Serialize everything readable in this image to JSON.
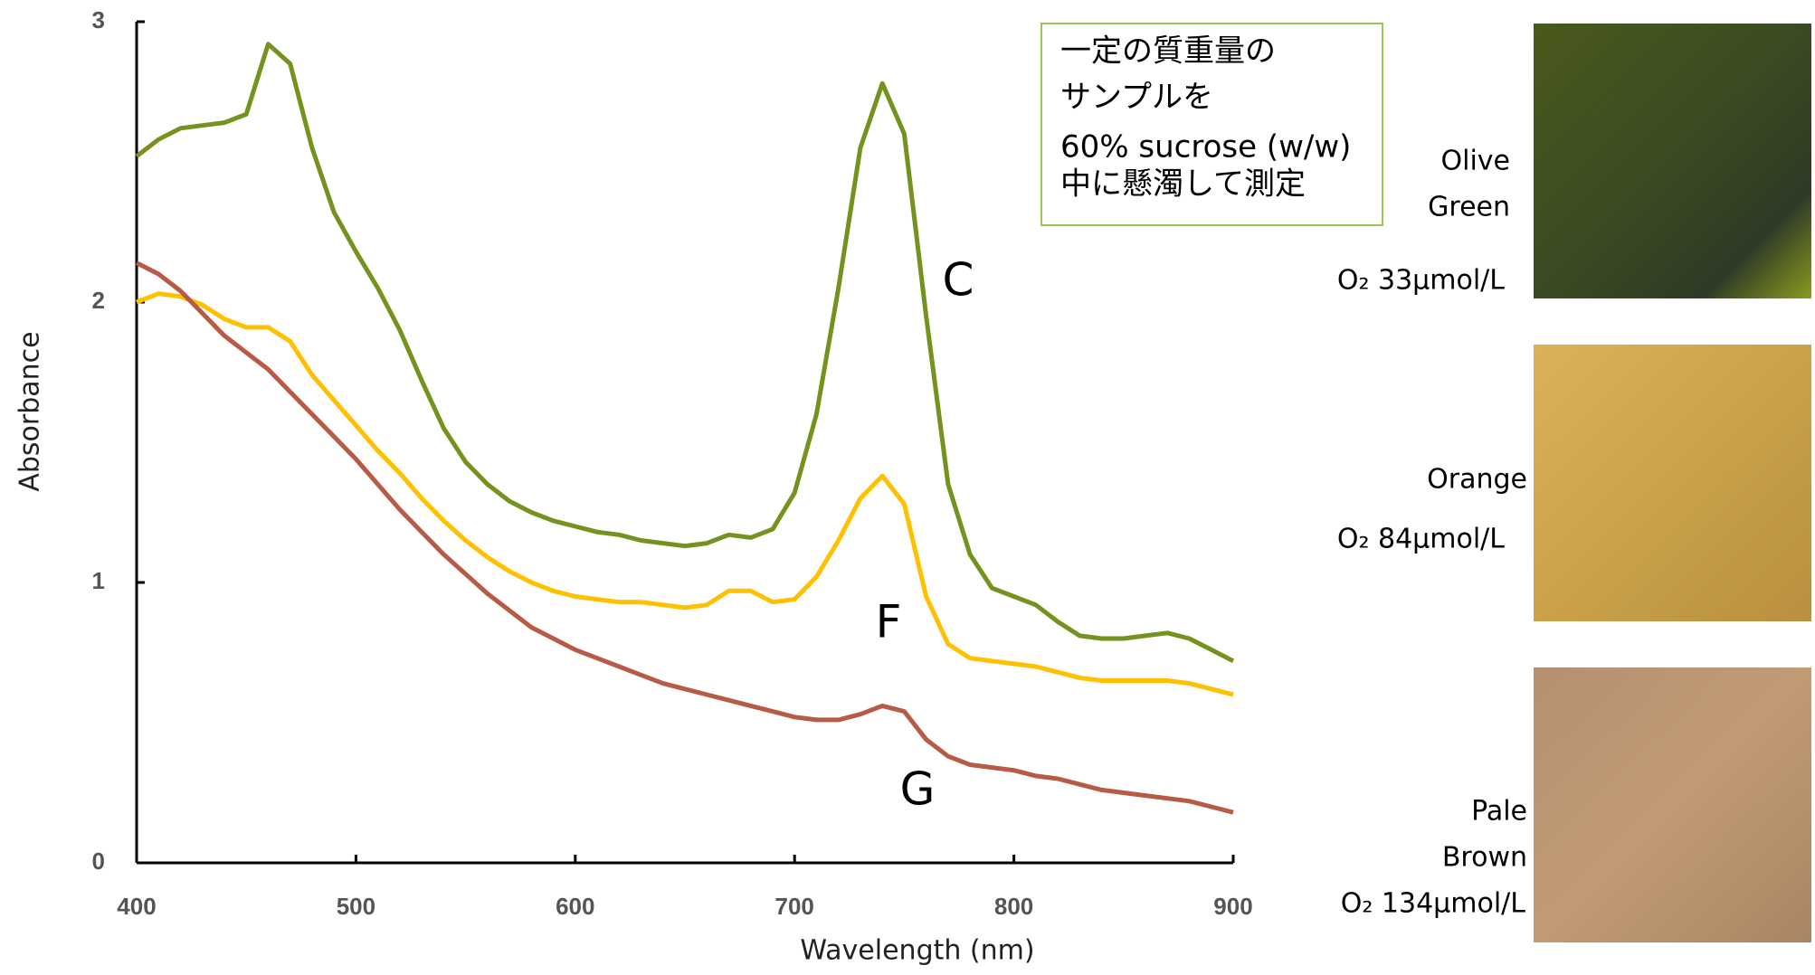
{
  "chart_data": {
    "type": "line",
    "x_label": "Wavelength  (nm)",
    "y_label": "Absorbance",
    "x": [
      400,
      410,
      420,
      430,
      440,
      450,
      460,
      470,
      480,
      490,
      500,
      510,
      520,
      530,
      540,
      550,
      560,
      570,
      580,
      590,
      600,
      610,
      620,
      630,
      640,
      650,
      660,
      670,
      680,
      690,
      700,
      710,
      720,
      730,
      740,
      750,
      760,
      770,
      780,
      790,
      800,
      810,
      820,
      830,
      840,
      850,
      860,
      870,
      880,
      890,
      900
    ],
    "xlim": [
      400,
      900
    ],
    "xticks": [
      400,
      500,
      600,
      700,
      800,
      900
    ],
    "ylim": [
      0,
      3
    ],
    "yticks": [
      0,
      1,
      2,
      3
    ],
    "grid": false,
    "series": [
      {
        "name": "C",
        "color": "#76921e",
        "values": [
          2.52,
          2.58,
          2.62,
          2.63,
          2.64,
          2.67,
          2.92,
          2.85,
          2.55,
          2.32,
          2.18,
          2.05,
          1.9,
          1.72,
          1.55,
          1.43,
          1.35,
          1.29,
          1.25,
          1.22,
          1.2,
          1.18,
          1.17,
          1.15,
          1.14,
          1.13,
          1.14,
          1.17,
          1.16,
          1.19,
          1.32,
          1.6,
          2.05,
          2.55,
          2.78,
          2.6,
          1.95,
          1.35,
          1.1,
          0.98,
          0.95,
          0.92,
          0.86,
          0.81,
          0.8,
          0.8,
          0.81,
          0.82,
          0.8,
          0.76,
          0.72
        ]
      },
      {
        "name": "F",
        "color": "#ffc000",
        "values": [
          2.0,
          2.03,
          2.02,
          1.99,
          1.94,
          1.91,
          1.91,
          1.86,
          1.74,
          1.65,
          1.56,
          1.47,
          1.39,
          1.3,
          1.22,
          1.15,
          1.09,
          1.04,
          1.0,
          0.97,
          0.95,
          0.94,
          0.93,
          0.93,
          0.92,
          0.91,
          0.92,
          0.97,
          0.97,
          0.93,
          0.94,
          1.02,
          1.15,
          1.3,
          1.38,
          1.28,
          0.95,
          0.78,
          0.73,
          0.72,
          0.71,
          0.7,
          0.68,
          0.66,
          0.65,
          0.65,
          0.65,
          0.65,
          0.64,
          0.62,
          0.6
        ]
      },
      {
        "name": "G",
        "color": "#b85a45",
        "values": [
          2.14,
          2.1,
          2.04,
          1.96,
          1.88,
          1.82,
          1.76,
          1.68,
          1.6,
          1.52,
          1.44,
          1.35,
          1.26,
          1.18,
          1.1,
          1.03,
          0.96,
          0.9,
          0.84,
          0.8,
          0.76,
          0.73,
          0.7,
          0.67,
          0.64,
          0.62,
          0.6,
          0.58,
          0.56,
          0.54,
          0.52,
          0.51,
          0.51,
          0.53,
          0.56,
          0.54,
          0.44,
          0.38,
          0.35,
          0.34,
          0.33,
          0.31,
          0.3,
          0.28,
          0.26,
          0.25,
          0.24,
          0.23,
          0.22,
          0.2,
          0.18
        ]
      }
    ],
    "annotation_lines": [
      "一定の質重量の",
      "サンプルを",
      "60% sucrose (w/w)",
      "中に懸濁して測定"
    ],
    "samples": [
      {
        "label": [
          "Olive",
          "Green"
        ],
        "oxygen": "O₂  33μmol/L"
      },
      {
        "label": [
          "Orange"
        ],
        "oxygen": "O₂  84μmol/L"
      },
      {
        "label": [
          "Pale",
          "Brown"
        ],
        "oxygen": "O₂  134μmol/L"
      }
    ]
  }
}
